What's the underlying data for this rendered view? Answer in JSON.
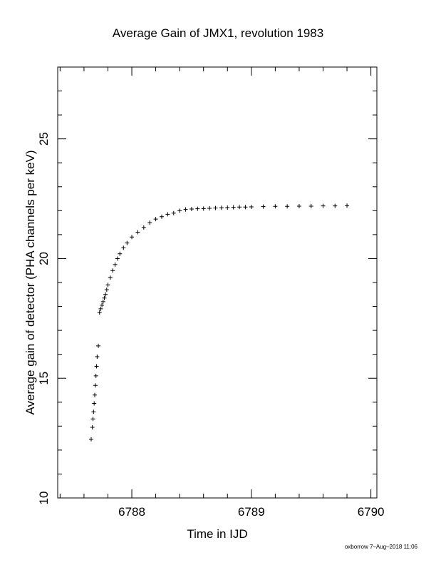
{
  "chart_data": {
    "type": "scatter",
    "title": "Average Gain of JMX1, revolution 1983",
    "xlabel": "Time in IJD",
    "ylabel": "Average gain of detector (PHA channels per keV)",
    "xlim": [
      6787.38,
      6790.05
    ],
    "ylim": [
      10,
      28
    ],
    "xticks": [
      6788,
      6789,
      6790
    ],
    "yticks": [
      10,
      15,
      20,
      25
    ],
    "marker": "plus",
    "grid": false,
    "legend": "none",
    "series": [
      {
        "x": [
          6787.66,
          6787.67,
          6787.675,
          6787.68,
          6787.685,
          6787.69,
          6787.695,
          6787.7,
          6787.705,
          6787.71,
          6787.72,
          6787.73,
          6787.74,
          6787.75,
          6787.76,
          6787.77,
          6787.78,
          6787.79,
          6787.8,
          6787.82,
          6787.84,
          6787.86,
          6787.88,
          6787.9,
          6787.93,
          6787.96,
          6788.0,
          6788.05,
          6788.1,
          6788.15,
          6788.2,
          6788.25,
          6788.3,
          6788.35,
          6788.4,
          6788.45,
          6788.5,
          6788.55,
          6788.6,
          6788.65,
          6788.7,
          6788.75,
          6788.8,
          6788.85,
          6788.9,
          6788.95,
          6789.0,
          6789.1,
          6789.2,
          6789.3,
          6789.4,
          6789.5,
          6789.6,
          6789.7,
          6789.8
        ],
        "y": [
          12.45,
          12.95,
          13.3,
          13.6,
          13.95,
          14.3,
          14.7,
          15.1,
          15.5,
          15.9,
          16.35,
          17.75,
          17.9,
          18.05,
          18.2,
          18.35,
          18.5,
          18.7,
          18.9,
          19.2,
          19.5,
          19.75,
          20.0,
          20.2,
          20.45,
          20.65,
          20.9,
          21.1,
          21.3,
          21.5,
          21.65,
          21.75,
          21.85,
          21.9,
          22.0,
          22.05,
          22.07,
          22.08,
          22.09,
          22.1,
          22.11,
          22.12,
          22.13,
          22.14,
          22.15,
          22.15,
          22.16,
          22.17,
          22.18,
          22.18,
          22.19,
          22.19,
          22.2,
          22.2,
          22.21
        ]
      }
    ]
  },
  "footer": {
    "stamp": "oxborrow  7–Aug–2018 11:06"
  }
}
